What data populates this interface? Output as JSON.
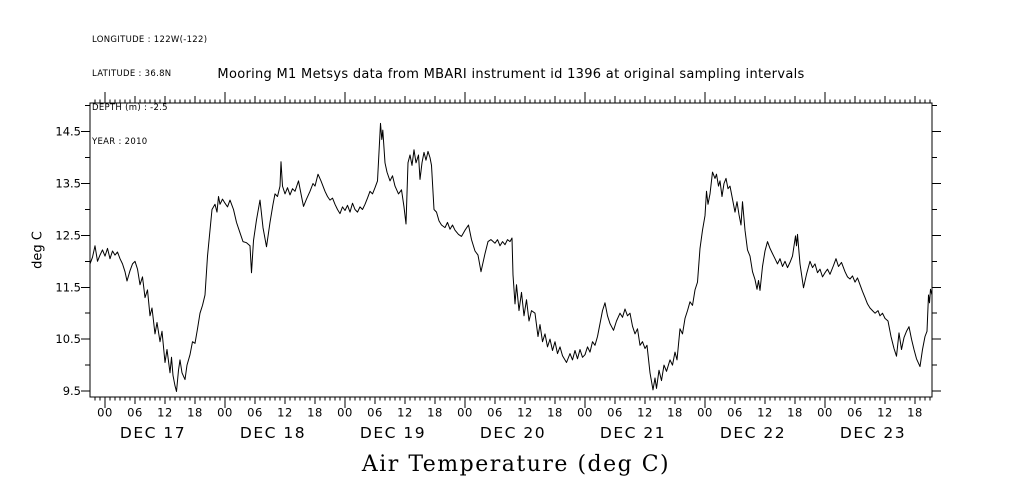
{
  "meta": {
    "lines": [
      "LONGITUDE : 122W(-122)",
      "LATITUDE : 36.8N",
      "DEPTH (m) : -2.5",
      "YEAR : 2010"
    ]
  },
  "title": "Mooring M1 Metsys data from MBARI instrument id 1396 at original sampling intervals",
  "y_axis_label": "deg C",
  "bottom_label": "Air Temperature (deg C)",
  "colors": {
    "line": "#000000",
    "background": "#ffffff"
  },
  "chart_data": {
    "type": "line",
    "title": "Mooring M1 Metsys data from MBARI instrument id 1396 at original sampling intervals",
    "ylabel": "deg C",
    "xlabel": "Air Temperature (deg C)",
    "x_unit": "hours since 2010-12-16 21:00",
    "x_range": [
      0,
      168.4
    ],
    "ylim": [
      9.384,
      15.053
    ],
    "grid": false,
    "legend": false,
    "y_major_ticks": [
      9.5,
      10.5,
      11.5,
      12.5,
      13.5,
      14.5
    ],
    "y_minor_ticks": [
      10.0,
      11.0,
      12.0,
      13.0,
      14.0,
      15.0
    ],
    "hour_label_cycle": [
      "00",
      "06",
      "12",
      "18"
    ],
    "days": [
      {
        "label": "DEC 17",
        "start_hour": 3
      },
      {
        "label": "DEC 18",
        "start_hour": 27
      },
      {
        "label": "DEC 19",
        "start_hour": 51
      },
      {
        "label": "DEC 20",
        "start_hour": 75
      },
      {
        "label": "DEC 21",
        "start_hour": 99
      },
      {
        "label": "DEC 22",
        "start_hour": 123
      },
      {
        "label": "DEC 23",
        "start_hour": 147
      }
    ],
    "points": [
      [
        0,
        11.95
      ],
      [
        0.5,
        12.08
      ],
      [
        1,
        12.3
      ],
      [
        1.5,
        12.0
      ],
      [
        2,
        12.12
      ],
      [
        2.5,
        12.22
      ],
      [
        3,
        12.1
      ],
      [
        3.5,
        12.25
      ],
      [
        4,
        12.05
      ],
      [
        4.5,
        12.2
      ],
      [
        5,
        12.12
      ],
      [
        5.5,
        12.18
      ],
      [
        6,
        12.05
      ],
      [
        6.5,
        11.95
      ],
      [
        7,
        11.8
      ],
      [
        7.4,
        11.62
      ],
      [
        8,
        11.82
      ],
      [
        8.5,
        11.95
      ],
      [
        9,
        12.0
      ],
      [
        9.5,
        11.85
      ],
      [
        10,
        11.55
      ],
      [
        10.5,
        11.7
      ],
      [
        11,
        11.3
      ],
      [
        11.5,
        11.45
      ],
      [
        12,
        10.95
      ],
      [
        12.4,
        11.1
      ],
      [
        13,
        10.6
      ],
      [
        13.4,
        10.82
      ],
      [
        14,
        10.45
      ],
      [
        14.4,
        10.65
      ],
      [
        15,
        10.05
      ],
      [
        15.4,
        10.3
      ],
      [
        16,
        9.85
      ],
      [
        16.3,
        10.15
      ],
      [
        16.6,
        9.8
      ],
      [
        17,
        9.6
      ],
      [
        17.3,
        9.49
      ],
      [
        17.7,
        9.9
      ],
      [
        18,
        10.1
      ],
      [
        18.4,
        9.85
      ],
      [
        19,
        9.72
      ],
      [
        19.4,
        10.0
      ],
      [
        20,
        10.2
      ],
      [
        20.5,
        10.45
      ],
      [
        21,
        10.42
      ],
      [
        21.5,
        10.7
      ],
      [
        22,
        11.0
      ],
      [
        22.5,
        11.15
      ],
      [
        23,
        11.35
      ],
      [
        23.5,
        12.1
      ],
      [
        24,
        12.6
      ],
      [
        24.4,
        13.0
      ],
      [
        25,
        13.1
      ],
      [
        25.4,
        12.95
      ],
      [
        25.7,
        13.25
      ],
      [
        26,
        13.1
      ],
      [
        26.5,
        13.2
      ],
      [
        27,
        13.12
      ],
      [
        27.5,
        13.05
      ],
      [
        28,
        13.18
      ],
      [
        28.7,
        13.0
      ],
      [
        29.3,
        12.75
      ],
      [
        30,
        12.55
      ],
      [
        30.6,
        12.38
      ],
      [
        31.3,
        12.36
      ],
      [
        32,
        12.3
      ],
      [
        32.3,
        11.78
      ],
      [
        32.7,
        12.4
      ],
      [
        33.3,
        12.8
      ],
      [
        34,
        13.18
      ],
      [
        34.6,
        12.65
      ],
      [
        35.3,
        12.28
      ],
      [
        36,
        12.75
      ],
      [
        36.6,
        13.1
      ],
      [
        37,
        13.3
      ],
      [
        37.5,
        13.25
      ],
      [
        38,
        13.45
      ],
      [
        38.2,
        13.92
      ],
      [
        38.5,
        13.45
      ],
      [
        39,
        13.3
      ],
      [
        39.5,
        13.42
      ],
      [
        40,
        13.28
      ],
      [
        40.5,
        13.4
      ],
      [
        41,
        13.35
      ],
      [
        41.7,
        13.55
      ],
      [
        42.2,
        13.3
      ],
      [
        42.7,
        13.06
      ],
      [
        43.3,
        13.2
      ],
      [
        44,
        13.35
      ],
      [
        44.6,
        13.5
      ],
      [
        45,
        13.45
      ],
      [
        45.6,
        13.68
      ],
      [
        46.2,
        13.55
      ],
      [
        47,
        13.35
      ],
      [
        47.5,
        13.25
      ],
      [
        48,
        13.18
      ],
      [
        48.5,
        13.22
      ],
      [
        49,
        13.1
      ],
      [
        49.5,
        13.0
      ],
      [
        50,
        12.92
      ],
      [
        50.5,
        13.05
      ],
      [
        51,
        12.98
      ],
      [
        51.5,
        13.08
      ],
      [
        52,
        12.95
      ],
      [
        52.5,
        13.12
      ],
      [
        53,
        13.0
      ],
      [
        53.5,
        12.95
      ],
      [
        54,
        13.05
      ],
      [
        54.5,
        13.0
      ],
      [
        55,
        13.1
      ],
      [
        55.5,
        13.22
      ],
      [
        56,
        13.35
      ],
      [
        56.5,
        13.3
      ],
      [
        57,
        13.42
      ],
      [
        57.5,
        13.55
      ],
      [
        58.1,
        14.66
      ],
      [
        58.35,
        14.35
      ],
      [
        58.55,
        14.53
      ],
      [
        59,
        13.9
      ],
      [
        59.4,
        13.72
      ],
      [
        60,
        13.55
      ],
      [
        60.5,
        13.65
      ],
      [
        61,
        13.45
      ],
      [
        61.7,
        13.3
      ],
      [
        62.3,
        13.38
      ],
      [
        62.8,
        13.05
      ],
      [
        63.2,
        12.72
      ],
      [
        63.6,
        13.9
      ],
      [
        64,
        14.05
      ],
      [
        64.4,
        13.85
      ],
      [
        64.8,
        14.15
      ],
      [
        65.2,
        13.9
      ],
      [
        65.7,
        14.05
      ],
      [
        66,
        13.58
      ],
      [
        66.4,
        13.9
      ],
      [
        66.8,
        14.1
      ],
      [
        67.2,
        13.95
      ],
      [
        67.6,
        14.12
      ],
      [
        68,
        14.0
      ],
      [
        68.3,
        13.85
      ],
      [
        68.8,
        13.0
      ],
      [
        69.3,
        12.95
      ],
      [
        69.8,
        12.78
      ],
      [
        70.3,
        12.7
      ],
      [
        71,
        12.65
      ],
      [
        71.5,
        12.75
      ],
      [
        72,
        12.62
      ],
      [
        72.5,
        12.7
      ],
      [
        73,
        12.6
      ],
      [
        73.7,
        12.52
      ],
      [
        74.3,
        12.48
      ],
      [
        75,
        12.6
      ],
      [
        75.7,
        12.7
      ],
      [
        76.3,
        12.42
      ],
      [
        77,
        12.2
      ],
      [
        77.6,
        12.12
      ],
      [
        78.2,
        11.8
      ],
      [
        79,
        12.15
      ],
      [
        79.6,
        12.38
      ],
      [
        80.2,
        12.42
      ],
      [
        81,
        12.35
      ],
      [
        81.5,
        12.42
      ],
      [
        82,
        12.3
      ],
      [
        82.5,
        12.38
      ],
      [
        83,
        12.32
      ],
      [
        83.5,
        12.42
      ],
      [
        84,
        12.38
      ],
      [
        84.4,
        12.45
      ],
      [
        84.6,
        11.74
      ],
      [
        85,
        11.18
      ],
      [
        85.3,
        11.55
      ],
      [
        85.8,
        11.05
      ],
      [
        86.3,
        11.4
      ],
      [
        86.8,
        10.95
      ],
      [
        87.3,
        11.26
      ],
      [
        87.8,
        10.85
      ],
      [
        88.3,
        11.05
      ],
      [
        89,
        11.0
      ],
      [
        89.6,
        10.55
      ],
      [
        90,
        10.78
      ],
      [
        90.5,
        10.45
      ],
      [
        91,
        10.6
      ],
      [
        91.5,
        10.35
      ],
      [
        92,
        10.5
      ],
      [
        92.5,
        10.28
      ],
      [
        93,
        10.45
      ],
      [
        93.5,
        10.22
      ],
      [
        94,
        10.35
      ],
      [
        94.5,
        10.18
      ],
      [
        95.3,
        10.05
      ],
      [
        96,
        10.22
      ],
      [
        96.5,
        10.1
      ],
      [
        97,
        10.28
      ],
      [
        97.5,
        10.12
      ],
      [
        98,
        10.3
      ],
      [
        98.5,
        10.15
      ],
      [
        99,
        10.2
      ],
      [
        99.5,
        10.35
      ],
      [
        100,
        10.25
      ],
      [
        100.5,
        10.45
      ],
      [
        101,
        10.38
      ],
      [
        101.5,
        10.55
      ],
      [
        102,
        10.8
      ],
      [
        102.5,
        11.05
      ],
      [
        103,
        11.2
      ],
      [
        103.5,
        10.95
      ],
      [
        104,
        10.8
      ],
      [
        104.7,
        10.67
      ],
      [
        105.3,
        10.85
      ],
      [
        106,
        11.0
      ],
      [
        106.5,
        10.92
      ],
      [
        107,
        11.08
      ],
      [
        107.5,
        10.95
      ],
      [
        108,
        11.0
      ],
      [
        108.5,
        10.75
      ],
      [
        109,
        10.6
      ],
      [
        109.5,
        10.7
      ],
      [
        110,
        10.38
      ],
      [
        110.5,
        10.45
      ],
      [
        111,
        10.32
      ],
      [
        111.4,
        10.38
      ],
      [
        112,
        9.85
      ],
      [
        112.6,
        9.52
      ],
      [
        113,
        9.75
      ],
      [
        113.3,
        9.55
      ],
      [
        113.8,
        9.9
      ],
      [
        114.3,
        9.7
      ],
      [
        114.8,
        10.0
      ],
      [
        115.3,
        9.88
      ],
      [
        116,
        10.1
      ],
      [
        116.5,
        10.0
      ],
      [
        117,
        10.25
      ],
      [
        117.4,
        10.1
      ],
      [
        118,
        10.7
      ],
      [
        118.5,
        10.6
      ],
      [
        119,
        10.9
      ],
      [
        119.5,
        11.05
      ],
      [
        120,
        11.22
      ],
      [
        120.5,
        11.15
      ],
      [
        121,
        11.45
      ],
      [
        121.5,
        11.6
      ],
      [
        122,
        12.25
      ],
      [
        122.5,
        12.6
      ],
      [
        123,
        12.88
      ],
      [
        123.3,
        13.35
      ],
      [
        123.6,
        13.1
      ],
      [
        124,
        13.3
      ],
      [
        124.5,
        13.72
      ],
      [
        125,
        13.6
      ],
      [
        125.3,
        13.68
      ],
      [
        125.7,
        13.45
      ],
      [
        126,
        13.55
      ],
      [
        126.4,
        13.25
      ],
      [
        126.8,
        13.5
      ],
      [
        127.2,
        13.6
      ],
      [
        127.6,
        13.4
      ],
      [
        128,
        13.45
      ],
      [
        128.5,
        13.2
      ],
      [
        129,
        12.95
      ],
      [
        129.4,
        13.15
      ],
      [
        129.8,
        12.9
      ],
      [
        130.2,
        12.7
      ],
      [
        130.5,
        13.15
      ],
      [
        131,
        12.6
      ],
      [
        131.5,
        12.22
      ],
      [
        132,
        12.1
      ],
      [
        132.5,
        11.8
      ],
      [
        133,
        11.65
      ],
      [
        133.4,
        11.46
      ],
      [
        133.7,
        11.63
      ],
      [
        134,
        11.44
      ],
      [
        134.5,
        11.9
      ],
      [
        135,
        12.2
      ],
      [
        135.5,
        12.38
      ],
      [
        136,
        12.25
      ],
      [
        136.5,
        12.15
      ],
      [
        137,
        12.05
      ],
      [
        137.5,
        11.95
      ],
      [
        138,
        12.05
      ],
      [
        138.5,
        11.9
      ],
      [
        139,
        12.0
      ],
      [
        139.5,
        11.88
      ],
      [
        140,
        11.98
      ],
      [
        140.5,
        12.1
      ],
      [
        141.1,
        12.49
      ],
      [
        141.3,
        12.3
      ],
      [
        141.5,
        12.52
      ],
      [
        142,
        11.95
      ],
      [
        142.7,
        11.49
      ],
      [
        143.3,
        11.75
      ],
      [
        144,
        12.0
      ],
      [
        144.5,
        11.88
      ],
      [
        145,
        11.95
      ],
      [
        145.5,
        11.78
      ],
      [
        146,
        11.85
      ],
      [
        146.5,
        11.7
      ],
      [
        147,
        11.78
      ],
      [
        147.5,
        11.85
      ],
      [
        148,
        11.75
      ],
      [
        148.7,
        11.92
      ],
      [
        149.2,
        12.05
      ],
      [
        149.7,
        11.9
      ],
      [
        150.3,
        11.98
      ],
      [
        151,
        11.8
      ],
      [
        151.5,
        11.7
      ],
      [
        152,
        11.66
      ],
      [
        152.5,
        11.72
      ],
      [
        153,
        11.6
      ],
      [
        153.5,
        11.68
      ],
      [
        154,
        11.55
      ],
      [
        154.5,
        11.42
      ],
      [
        155,
        11.3
      ],
      [
        155.5,
        11.18
      ],
      [
        156,
        11.1
      ],
      [
        156.5,
        11.05
      ],
      [
        157,
        11.0
      ],
      [
        157.6,
        11.05
      ],
      [
        158,
        10.95
      ],
      [
        158.5,
        11.0
      ],
      [
        159,
        10.9
      ],
      [
        159.6,
        10.85
      ],
      [
        160.2,
        10.55
      ],
      [
        160.8,
        10.32
      ],
      [
        161.3,
        10.17
      ],
      [
        161.8,
        10.62
      ],
      [
        162.3,
        10.3
      ],
      [
        162.8,
        10.53
      ],
      [
        163.3,
        10.65
      ],
      [
        163.8,
        10.74
      ],
      [
        164.3,
        10.5
      ],
      [
        164.8,
        10.3
      ],
      [
        165.3,
        10.12
      ],
      [
        166,
        9.97
      ],
      [
        166.5,
        10.3
      ],
      [
        167,
        10.55
      ],
      [
        167.4,
        10.65
      ],
      [
        167.7,
        11.35
      ],
      [
        167.9,
        11.2
      ],
      [
        168.1,
        11.46
      ],
      [
        168.4,
        11.35
      ]
    ]
  }
}
